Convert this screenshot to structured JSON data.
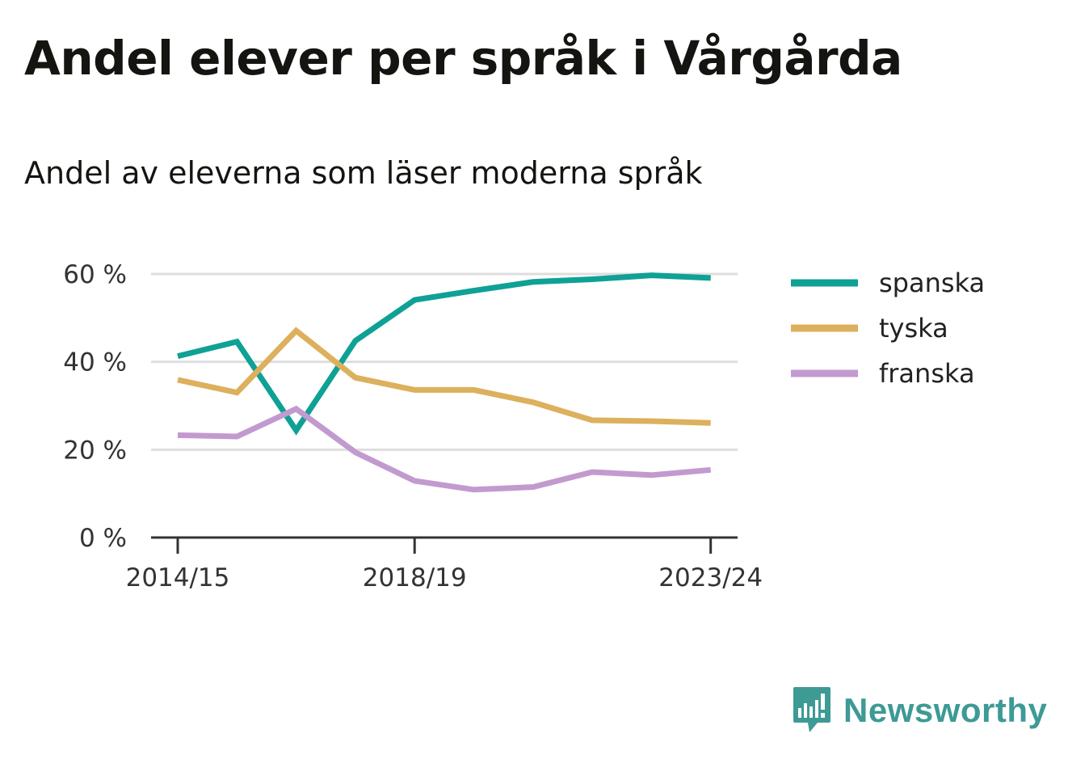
{
  "title": "Andel elever per språk i Vårgårda",
  "subtitle": "Andel av eleverna som läser moderna språk",
  "brand": {
    "name": "Newsworthy",
    "icon": "newsworthy-logo-icon",
    "color": "#3d9a95"
  },
  "chart_data": {
    "type": "line",
    "x": [
      "2014/15",
      "2015/16",
      "2016/17",
      "2017/18",
      "2018/19",
      "2019/20",
      "2020/21",
      "2021/22",
      "2022/23",
      "2023/24"
    ],
    "x_tick_labels": [
      "2014/15",
      "2018/19",
      "2023/24"
    ],
    "y_ticks": [
      0,
      20,
      40,
      60
    ],
    "y_tick_labels": [
      "0 %",
      "20 %",
      "40 %",
      "60 %"
    ],
    "ylim": [
      0,
      60
    ],
    "y_unit": "%",
    "grid": true,
    "legend_position": "right",
    "series": [
      {
        "name": "spanska",
        "color": "#0fa195",
        "values": [
          41.3,
          44.6,
          24.4,
          44.8,
          54.1,
          56.2,
          58.2,
          58.8,
          59.7,
          59.1
        ]
      },
      {
        "name": "tyska",
        "color": "#dcb05d",
        "values": [
          35.9,
          33.0,
          47.1,
          36.4,
          33.6,
          33.6,
          30.8,
          26.7,
          26.5,
          26.1
        ]
      },
      {
        "name": "franska",
        "color": "#c29acf",
        "values": [
          23.3,
          23.0,
          29.3,
          19.4,
          12.9,
          10.9,
          11.5,
          14.9,
          14.2,
          15.4
        ]
      }
    ]
  }
}
